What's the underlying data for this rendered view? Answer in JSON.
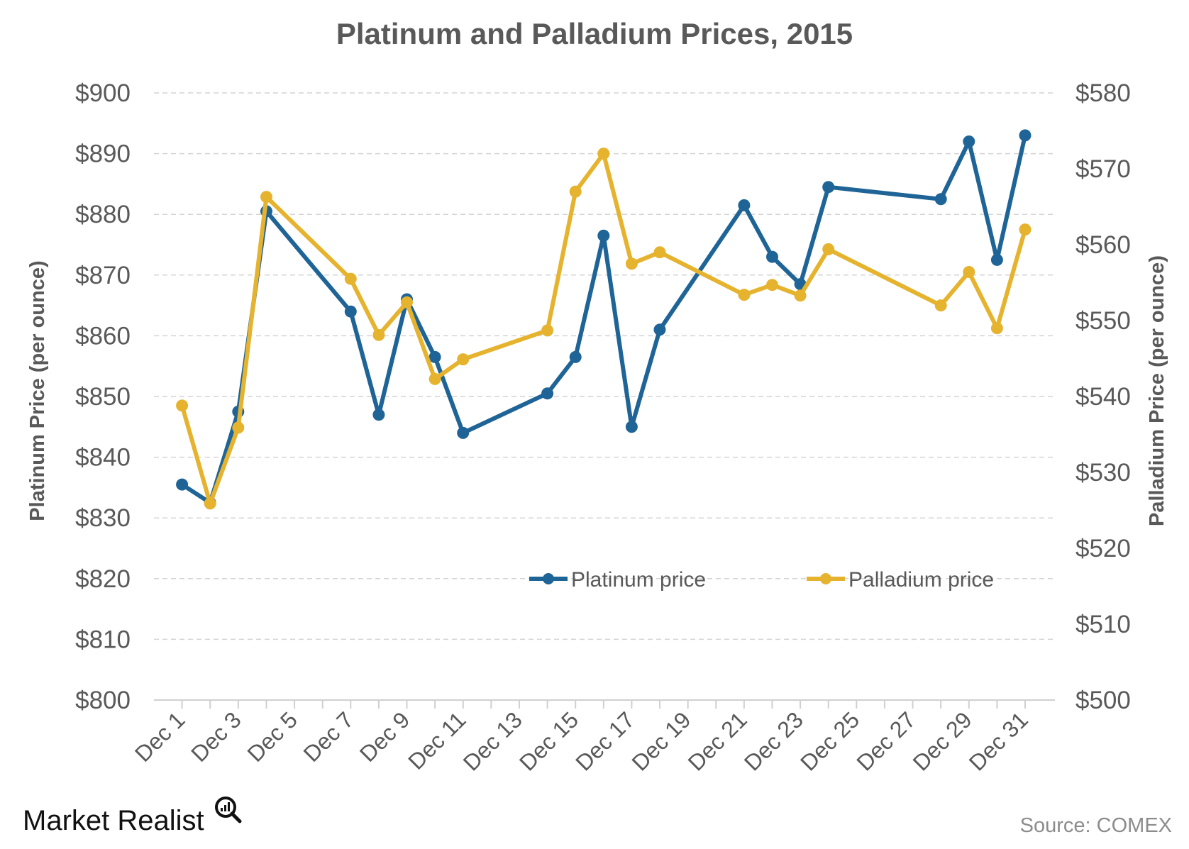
{
  "chart_data": {
    "type": "line",
    "title": "Platinum and Palladium Prices, 2015",
    "ylabel_left": "Platinum Price (per ounce)",
    "ylabel_right": "Palladium Price (per ounce)",
    "ylim_left": [
      800,
      900
    ],
    "ylim_right": [
      500,
      580
    ],
    "yticks_left": [
      800,
      810,
      820,
      830,
      840,
      850,
      860,
      870,
      880,
      890,
      900
    ],
    "yticks_right": [
      500,
      510,
      520,
      530,
      540,
      550,
      560,
      570,
      580
    ],
    "ytick_labels_left": [
      "$800",
      "$810",
      "$820",
      "$830",
      "$840",
      "$850",
      "$860",
      "$870",
      "$880",
      "$890",
      "$900"
    ],
    "ytick_labels_right": [
      "$500",
      "$510",
      "$520",
      "$530",
      "$540",
      "$550",
      "$560",
      "$570",
      "$580"
    ],
    "xlim": [
      0,
      31
    ],
    "xticks": [
      1,
      3,
      5,
      7,
      9,
      11,
      13,
      15,
      17,
      19,
      21,
      23,
      25,
      27,
      29,
      31
    ],
    "xtick_labels": [
      "Dec 1",
      "Dec 3",
      "Dec 5",
      "Dec 7",
      "Dec 9",
      "Dec 11",
      "Dec 13",
      "Dec 15",
      "Dec 17",
      "Dec 19",
      "Dec 21",
      "Dec 23",
      "Dec 25",
      "Dec 27",
      "Dec 29",
      "Dec 31"
    ],
    "x": [
      1,
      2,
      3,
      4,
      7,
      8,
      9,
      10,
      11,
      14,
      15,
      16,
      17,
      18,
      21,
      22,
      23,
      24,
      28,
      29,
      30,
      31
    ],
    "series": [
      {
        "name": "Platinum price",
        "axis": "left",
        "color": "#1f6496",
        "values": [
          835.5,
          832.5,
          847.5,
          880.5,
          864,
          847,
          866,
          856.5,
          844,
          850.5,
          856.5,
          876.5,
          845,
          861,
          881.5,
          873,
          868.5,
          884.5,
          882.5,
          892,
          872.5,
          893
        ]
      },
      {
        "name": "Palladium price",
        "axis": "right",
        "color": "#e6b32e",
        "values": [
          538.8,
          525.9,
          535.9,
          566.3,
          555.5,
          548.1,
          552.4,
          542.3,
          544.9,
          548.7,
          567,
          572,
          557.5,
          559,
          553.4,
          554.7,
          553.3,
          559.4,
          552,
          556.4,
          549,
          562
        ]
      }
    ],
    "legend_position": "inside-bottom-right",
    "grid": true
  },
  "footer": {
    "brand": "Market Realist",
    "brand_icon": "magnifier-chart-icon",
    "source": "Source: COMEX"
  }
}
